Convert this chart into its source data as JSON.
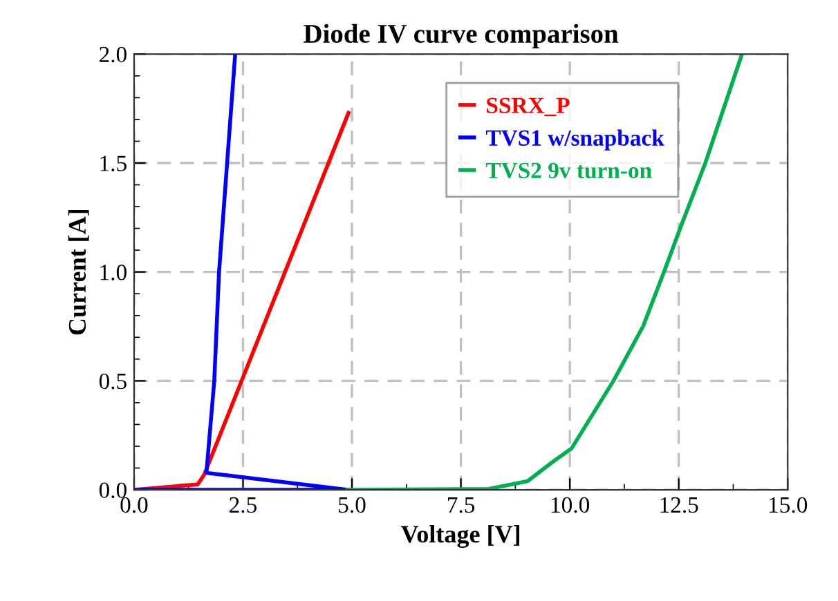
{
  "chart_data": {
    "type": "line",
    "title": "Diode IV curve comparison",
    "xlabel": "Voltage [V]",
    "ylabel": "Current [A]",
    "xlim": [
      0,
      15
    ],
    "xticks": [
      {
        "value": 0,
        "label": "0.0"
      },
      2.5,
      {
        "value": 5,
        "label": "5.0"
      },
      {
        "value": 7.5,
        "label": "7.5"
      },
      {
        "value": 10,
        "label": "10.0"
      },
      12.5,
      {
        "value": 15,
        "label": "15.0"
      }
    ],
    "ylim": [
      0,
      2
    ],
    "yticks": [
      {
        "value": 0,
        "label": "0.0"
      },
      0.5,
      {
        "value": 1,
        "label": "1.0"
      },
      1.5,
      {
        "value": 2,
        "label": "2.0"
      }
    ],
    "grid": true,
    "legend": "top right",
    "line_style": "solid",
    "marker": "none",
    "series": [
      {
        "name": "SSRX_P",
        "color": "#ff0000",
        "x": [
          0,
          1.46,
          1.61,
          4.92
        ],
        "values": [
          0,
          0.025,
          0.07,
          1.73
        ]
      },
      {
        "name": "TVS1 w/snapback",
        "color": "#0000ff",
        "x": [
          0,
          4.9,
          1.66,
          1.84,
          1.95,
          2.32
        ],
        "values": [
          0,
          0,
          0.078,
          0.5,
          1.0,
          2.0
        ]
      },
      {
        "name": "TVS2 9v turn-on",
        "color": "#00b050",
        "x": [
          4.9,
          8.14,
          9.03,
          9.62,
          10.04,
          11.0,
          11.68,
          12.16,
          12.55,
          13.11,
          13.95
        ],
        "values": [
          0,
          0.004,
          0.04,
          0.13,
          0.19,
          0.5,
          0.75,
          1.0,
          1.21,
          1.5,
          2.0
        ]
      }
    ]
  }
}
